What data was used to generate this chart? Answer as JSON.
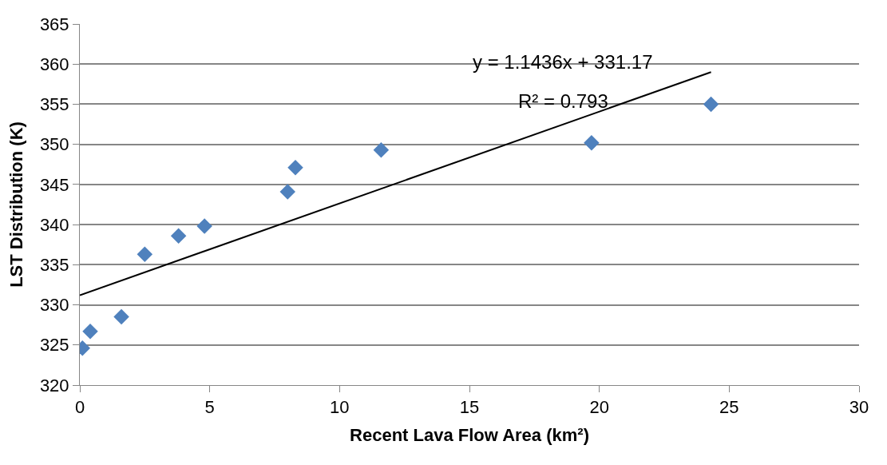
{
  "chart_data": {
    "type": "scatter",
    "xlabel": "Recent Lava Flow Area (km²)",
    "ylabel": "LST Distribution (K)",
    "series": [
      {
        "color": "#4f81bd",
        "marker": "diamond",
        "x": [
          0.1,
          0.4,
          1.6,
          2.5,
          3.8,
          4.8,
          8.0,
          8.3,
          11.6,
          19.7,
          24.3
        ],
        "values": [
          324.6,
          326.7,
          328.5,
          336.3,
          338.6,
          339.8,
          344.1,
          347.1,
          349.3,
          350.2,
          355.0
        ]
      },
      {
        "type": "line",
        "color": "#000000",
        "marker": "none",
        "x": [
          0,
          24.3
        ],
        "values": [
          331.2,
          359.0
        ]
      }
    ],
    "annotations": [
      "y = 1.1436x + 331.17",
      "R² = 0.793"
    ],
    "xlim": [
      0,
      30
    ],
    "xticks": [
      0,
      5,
      10,
      15,
      20,
      25,
      30
    ],
    "ylim": [
      320,
      365
    ],
    "yticks": [
      320,
      325,
      330,
      335,
      340,
      345,
      350,
      355,
      360,
      365
    ],
    "grid": "y"
  }
}
